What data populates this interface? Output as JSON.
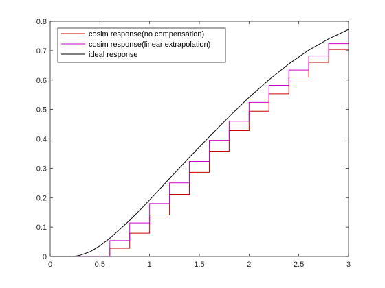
{
  "chart_data": {
    "type": "line",
    "title": "",
    "xlabel": "",
    "ylabel": "",
    "xlim": [
      0,
      3
    ],
    "ylim": [
      0,
      0.8
    ],
    "xticks": [
      0,
      0.5,
      1,
      1.5,
      2,
      2.5,
      3
    ],
    "xtick_labels": [
      "0",
      "0.5",
      "1",
      "1.5",
      "2",
      "2.5",
      "3"
    ],
    "yticks": [
      0,
      0.1,
      0.2,
      0.3,
      0.4,
      0.5,
      0.6,
      0.7,
      0.8
    ],
    "ytick_labels": [
      "0",
      "0.1",
      "0.2",
      "0.3",
      "0.4",
      "0.5",
      "0.6",
      "0.7",
      "0.8"
    ],
    "grid": false,
    "legend_position": "top-left",
    "series": [
      {
        "name": "cosim response(no compensation)",
        "color": "#cc0000",
        "style": "step",
        "x": [
          0,
          0.6,
          0.6,
          0.8,
          0.8,
          1.0,
          1.0,
          1.2,
          1.2,
          1.4,
          1.4,
          1.6,
          1.6,
          1.8,
          1.8,
          2.0,
          2.0,
          2.2,
          2.2,
          2.4,
          2.4,
          2.6,
          2.6,
          2.8,
          2.8,
          3.0
        ],
        "y": [
          0,
          0,
          0.028,
          0.028,
          0.079,
          0.079,
          0.141,
          0.141,
          0.211,
          0.211,
          0.286,
          0.286,
          0.358,
          0.358,
          0.428,
          0.428,
          0.494,
          0.494,
          0.553,
          0.553,
          0.61,
          0.61,
          0.66,
          0.66,
          0.704,
          0.704
        ]
      },
      {
        "name": "cosim response(linear extrapolation)",
        "color": "#cc00cc",
        "style": "step",
        "x": [
          0,
          0.6,
          0.6,
          0.8,
          0.8,
          1.0,
          1.0,
          1.2,
          1.2,
          1.4,
          1.4,
          1.6,
          1.6,
          1.8,
          1.8,
          2.0,
          2.0,
          2.2,
          2.2,
          2.4,
          2.4,
          2.6,
          2.6,
          2.8,
          2.8,
          3.0,
          3.0
        ],
        "y": [
          0,
          0,
          0.054,
          0.054,
          0.114,
          0.114,
          0.18,
          0.18,
          0.25,
          0.25,
          0.323,
          0.323,
          0.395,
          0.395,
          0.46,
          0.46,
          0.524,
          0.524,
          0.582,
          0.582,
          0.634,
          0.634,
          0.682,
          0.682,
          0.724,
          0.724,
          0.762
        ]
      },
      {
        "name": "ideal response",
        "color": "#000000",
        "style": "line",
        "x": [
          0,
          0.2,
          0.25,
          0.3,
          0.4,
          0.5,
          0.6,
          0.7,
          0.8,
          0.9,
          1.0,
          1.2,
          1.4,
          1.6,
          1.8,
          2.0,
          2.2,
          2.4,
          2.6,
          2.8,
          3.0
        ],
        "y": [
          0,
          0,
          0.001,
          0.004,
          0.016,
          0.036,
          0.062,
          0.092,
          0.123,
          0.157,
          0.192,
          0.265,
          0.337,
          0.407,
          0.476,
          0.541,
          0.601,
          0.655,
          0.702,
          0.74,
          0.772
        ]
      }
    ]
  }
}
